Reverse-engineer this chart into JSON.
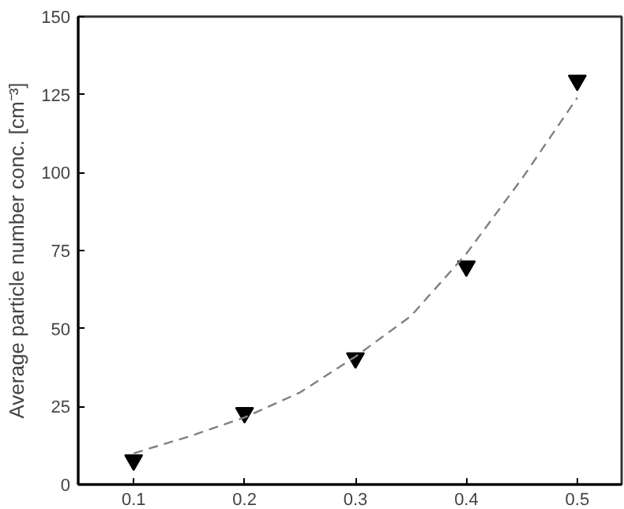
{
  "chart_data": {
    "type": "scatter",
    "ylabel": "Average particle number conc. [cm⁻³]",
    "x": [
      0.1,
      0.2,
      0.3,
      0.4,
      0.5
    ],
    "series": [
      {
        "color": "#000000",
        "marker": "triangle",
        "values": [
          7.8,
          23,
          40.5,
          70,
          129.5
        ]
      },
      {
        "type": "line",
        "color": "#808080",
        "line_style": "dashed",
        "x": [
          0.1,
          0.15,
          0.2,
          0.25,
          0.3,
          0.35,
          0.4,
          0.45,
          0.5
        ],
        "values": [
          10,
          15.4,
          21.5,
          29.5,
          41,
          54,
          74,
          98,
          124
        ]
      }
    ],
    "xlim": [
      0.05,
      0.54
    ],
    "xticks": [
      0.1,
      0.2,
      0.3,
      0.4,
      0.5
    ],
    "ylim": [
      0,
      150
    ],
    "yticks": [
      0,
      25,
      50,
      75,
      100,
      125,
      150
    ],
    "grid": false
  }
}
